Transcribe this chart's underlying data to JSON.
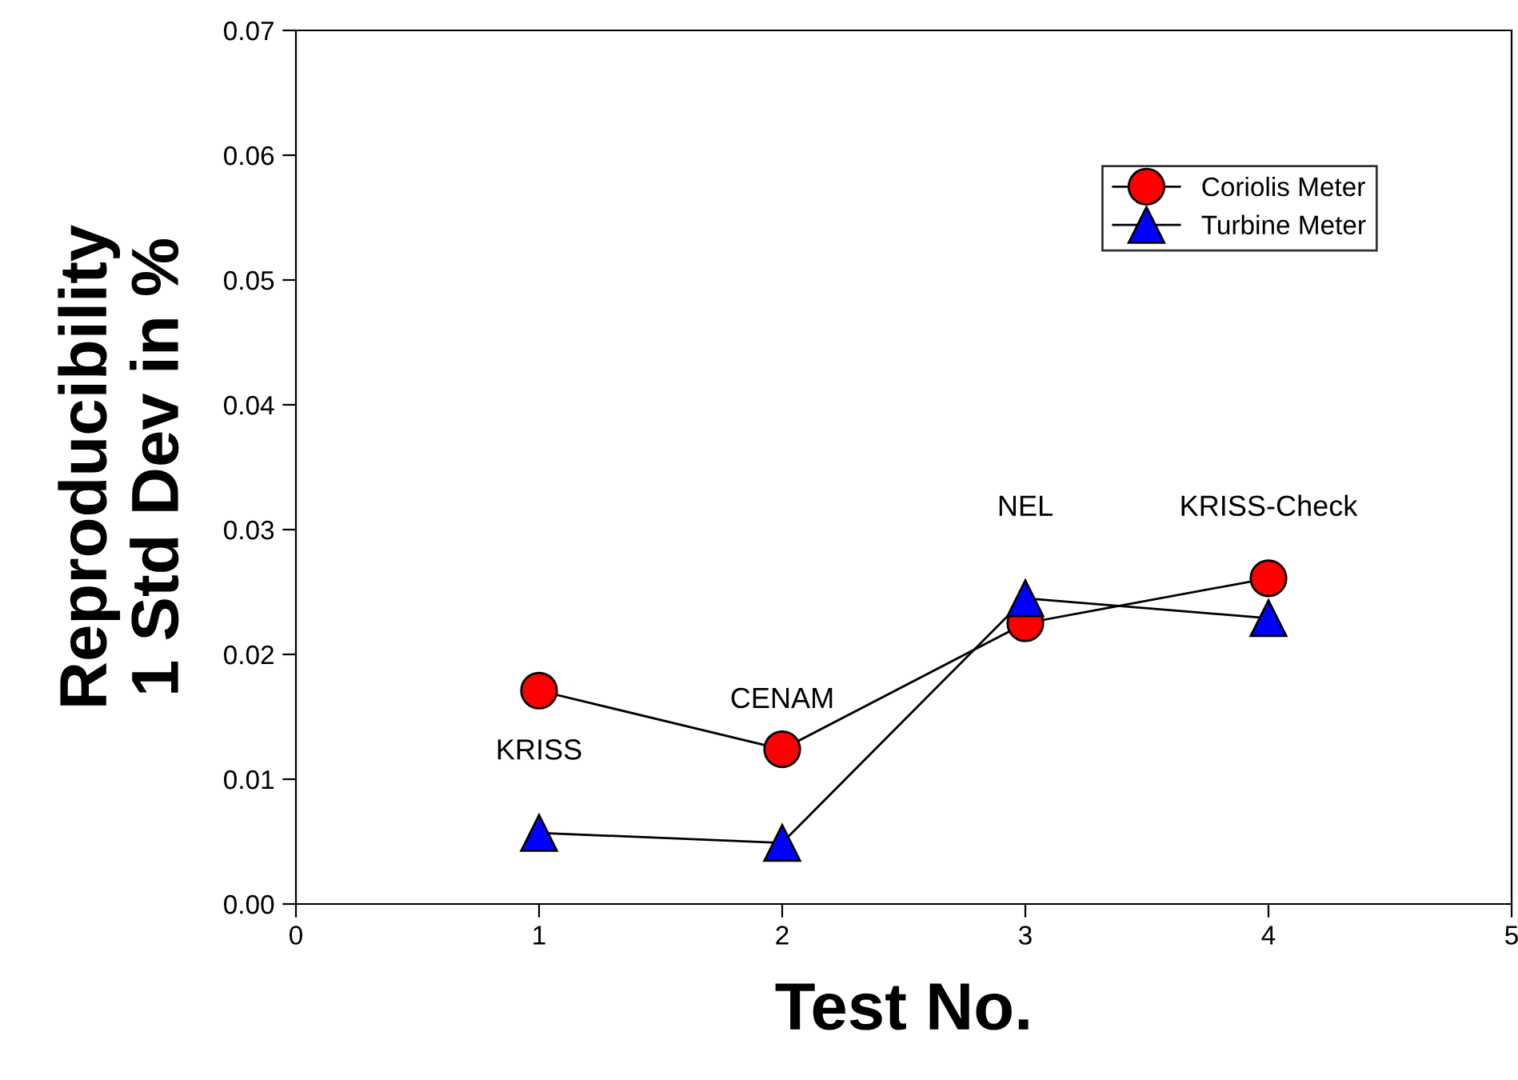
{
  "chart_data": {
    "type": "line",
    "xlabel": "Test No.",
    "ylabel": "Reproducibility\n1 Std Dev in %",
    "x": [
      1,
      2,
      3,
      4
    ],
    "series": [
      {
        "name": "Coriolis Meter",
        "color": "#ff0000",
        "marker": "circle",
        "values": [
          0.0171,
          0.0124,
          0.0225,
          0.0261
        ]
      },
      {
        "name": "Turbine Meter",
        "color": "#0000ff",
        "marker": "triangle",
        "values": [
          0.0057,
          0.0049,
          0.0245,
          0.0229
        ]
      }
    ],
    "annotations": [
      "KRISS",
      "CENAM",
      "NEL",
      "KRISS-Check"
    ],
    "xlim": [
      0,
      5
    ],
    "xticks": [
      0,
      1,
      2,
      3,
      4,
      5
    ],
    "ylim": [
      0,
      0.07
    ],
    "yticks": [
      {
        "value": 0,
        "label": "0.00"
      },
      {
        "value": 0.01,
        "label": "0.01"
      },
      {
        "value": 0.02,
        "label": "0.02"
      },
      {
        "value": 0.03,
        "label": "0.03"
      },
      {
        "value": 0.04,
        "label": "0.04"
      },
      {
        "value": 0.05,
        "label": "0.05"
      },
      {
        "value": 0.06,
        "label": "0.06"
      },
      {
        "value": 0.07,
        "label": "0.07"
      }
    ],
    "grid": false,
    "legend": "top right",
    "line_style": "solid"
  }
}
